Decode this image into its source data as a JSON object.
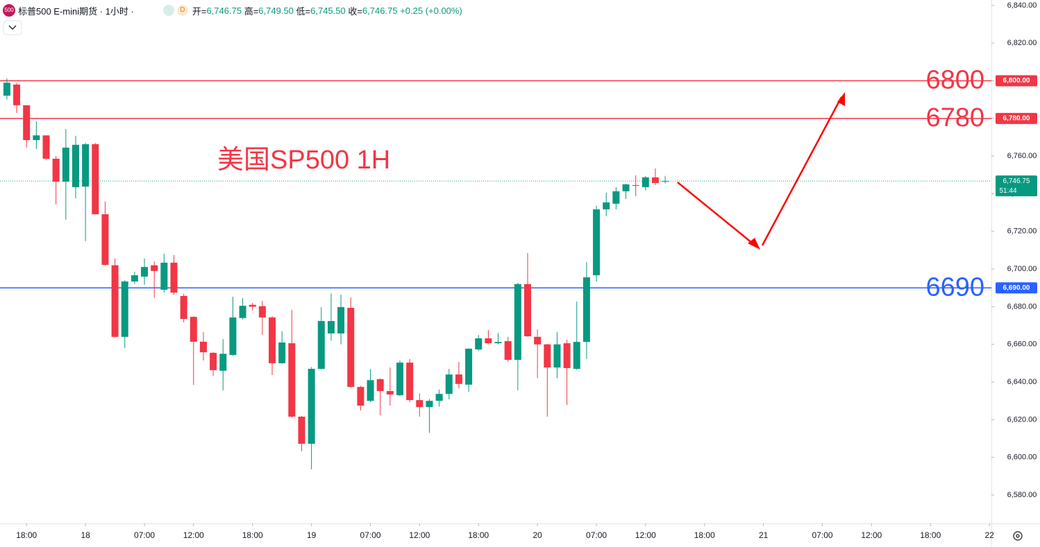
{
  "chart_data": {
    "type": "candlestick",
    "title": "标普500 E-mini期货 · 1小时 ·",
    "symbol_icon": "500",
    "source_badge": "D",
    "header": {
      "open_label": "开=",
      "open": "6,746.75",
      "high_label": "高=",
      "high": "6,749.50",
      "low_label": "低=",
      "low": "6,745.50",
      "close_label": "收=",
      "close": "6,746.75",
      "change": "+0.25 (+0.00%)"
    },
    "annotation": "美国SP500 1H",
    "up_color": "#089981",
    "down_color": "#f23645",
    "open": [
      6792.1,
      6798,
      6787,
      6768.5,
      6771,
      6758.6,
      6746.4,
      6743.5,
      6743.8,
      6766.3,
      6729.1,
      6702,
      6664,
      6693.4,
      6696,
      6702,
      6689,
      6703.4,
      6685.7,
      6674.6,
      6661.4,
      6655.5,
      6646,
      6654.4,
      6674,
      6681,
      6680.3,
      6674.3,
      6650,
      6660.6,
      6621.6,
      6607.2,
      6647,
      6665.8,
      6665.8,
      6679.4,
      6637.4,
      6630,
      6641.5,
      6635.2,
      6633,
      6650.3,
      6630.4,
      6626.7,
      6630,
      6633.7,
      6644,
      6638.6,
      6657.3,
      6663.2,
      6660.6,
      6661.7,
      6651.8,
      6692,
      6664,
      6660,
      6647.7,
      6660.6,
      6647,
      6661.3,
      6696.7,
      6731.7,
      6734.7,
      6741.3,
      6744.6,
      6743.5,
      6748.7,
      6746.75
    ],
    "high": [
      6801.3,
      6799,
      6787,
      6778.5,
      6771,
      6760,
      6774.4,
      6770.8,
      6767,
      6767,
      6735.8,
      6705.6,
      6694,
      6698.6,
      6705.6,
      6704,
      6708.2,
      6707.4,
      6687,
      6675,
      6666.5,
      6656,
      6662.8,
      6685.3,
      6684.6,
      6682,
      6683.2,
      6675,
      6667,
      6678.3,
      6622,
      6648,
      6679.8,
      6687,
      6686.4,
      6685,
      6638,
      6647,
      6642,
      6647.7,
      6651.4,
      6652.2,
      6634,
      6631,
      6636,
      6647,
      6650.7,
      6658,
      6665,
      6667.6,
      6666,
      6664,
      6692.7,
      6708.5,
      6668,
      6660.3,
      6666.5,
      6662.5,
      6682.7,
      6703.7,
      6733.6,
      6740.6,
      6743.5,
      6745.3,
      6749.8,
      6749.4,
      6753.4,
      6749.5
    ],
    "low": [
      6790,
      6783,
      6764.5,
      6763.8,
      6758,
      6734.3,
      6726.2,
      6737.6,
      6714.8,
      6729,
      6701.9,
      6663.6,
      6658,
      6692,
      6691.6,
      6684.6,
      6687.5,
      6686.4,
      6671.7,
      6638.5,
      6651.4,
      6643.3,
      6635.6,
      6654,
      6673.2,
      6678,
      6665,
      6643.7,
      6649.6,
      6621.2,
      6603.2,
      6593.6,
      6646.6,
      6662,
      6660,
      6637,
      6624.9,
      6629.3,
      6622.3,
      6627.5,
      6632.6,
      6629.3,
      6621.6,
      6613,
      6627,
      6630.8,
      6636.7,
      6634.8,
      6656.6,
      6659.9,
      6660,
      6650.7,
      6635.6,
      6664,
      6642,
      6621.6,
      6642,
      6627.8,
      6646.6,
      6652.2,
      6693.4,
      6728,
      6731.7,
      6737.2,
      6738.7,
      6741.7,
      6744.6,
      6745.5
    ],
    "close": [
      6799,
      6787,
      6768.5,
      6771,
      6758.6,
      6746.4,
      6764.5,
      6766,
      6766.3,
      6729.1,
      6702.2,
      6664,
      6693.4,
      6696.7,
      6701.1,
      6699,
      6703.4,
      6687.5,
      6673.5,
      6661.4,
      6655.8,
      6646.3,
      6655,
      6674.3,
      6680.5,
      6680,
      6674.3,
      6650,
      6661,
      6621.6,
      6607.2,
      6647,
      6672.4,
      6672.4,
      6679.8,
      6637.4,
      6627.5,
      6641,
      6635.2,
      6633.4,
      6650.3,
      6630.4,
      6626.7,
      6630,
      6633.7,
      6644,
      6639,
      6657.7,
      6663.2,
      6660.6,
      6661.3,
      6651.8,
      6692,
      6664.3,
      6660,
      6647.7,
      6660,
      6647.4,
      6661.3,
      6695.6,
      6731.7,
      6735.4,
      6741.3,
      6745,
      6744.2,
      6748.7,
      6745.7,
      6746.75
    ],
    "xlim": [
      -0.7,
      100.2
    ],
    "xticks": [
      {
        "value": 2,
        "label": "18:00"
      },
      {
        "value": 8,
        "label": "18"
      },
      {
        "value": 14,
        "label": "07:00"
      },
      {
        "value": 19,
        "label": "12:00"
      },
      {
        "value": 25,
        "label": "18:00"
      },
      {
        "value": 31,
        "label": "19"
      },
      {
        "value": 37,
        "label": "07:00"
      },
      {
        "value": 42,
        "label": "12:00"
      },
      {
        "value": 48,
        "label": "18:00"
      },
      {
        "value": 54,
        "label": "20"
      },
      {
        "value": 60,
        "label": "07:00"
      },
      {
        "value": 65,
        "label": "12:00"
      },
      {
        "value": 71,
        "label": "18:00"
      },
      {
        "value": 77,
        "label": "21"
      },
      {
        "value": 83,
        "label": "07:00"
      },
      {
        "value": 88,
        "label": "12:00"
      },
      {
        "value": 94,
        "label": "18:00"
      },
      {
        "value": 100,
        "label": "22"
      }
    ],
    "ylim": [
      6564.9,
      6842.9
    ],
    "yticks": [
      {
        "value": 6840,
        "label": "6,840.00"
      },
      {
        "value": 6820,
        "label": "6,820.00"
      },
      {
        "value": 6800,
        "label": "6,800.00"
      },
      {
        "value": 6780,
        "label": "6,780.00"
      },
      {
        "value": 6760,
        "label": "6,760.00"
      },
      {
        "value": 6740,
        "label": "6,740.00"
      },
      {
        "value": 6720,
        "label": "6,720.00"
      },
      {
        "value": 6700,
        "label": "6,700.00"
      },
      {
        "value": 6680,
        "label": "6,680.00"
      },
      {
        "value": 6660,
        "label": "6,660.00"
      },
      {
        "value": 6640,
        "label": "6,640.00"
      },
      {
        "value": 6620,
        "label": "6,620.00"
      },
      {
        "value": 6600,
        "label": "6,600.00"
      },
      {
        "value": 6580,
        "label": "6,580.00"
      }
    ],
    "levels": [
      {
        "value": 6800,
        "label": "6,800.00",
        "annotation": "6800",
        "color": "#f23645"
      },
      {
        "value": 6780,
        "label": "6,780.00",
        "annotation": "6780",
        "color": "#f23645"
      },
      {
        "value": 6690,
        "label": "6,690.00",
        "annotation": "6690",
        "color": "#2962ff"
      }
    ],
    "last_price": {
      "value": 6746.75,
      "label": "6,746.75",
      "countdown": "51:44",
      "color": "#089981"
    }
  }
}
